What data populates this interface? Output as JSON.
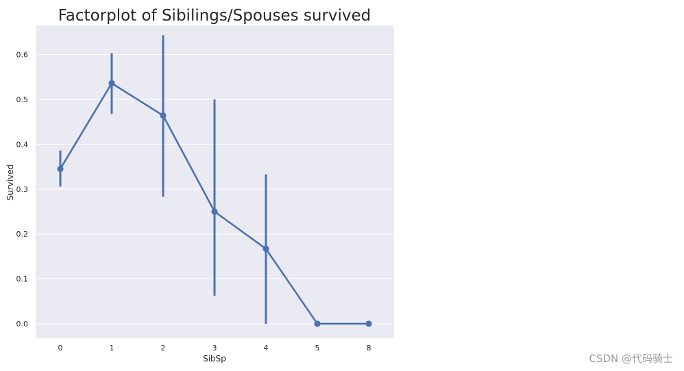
{
  "chart_data": {
    "type": "line",
    "title": "Factorplot of Sibilings/Spouses survived",
    "xlabel": "SibSp",
    "ylabel": "Survived",
    "categories": [
      "0",
      "1",
      "2",
      "3",
      "4",
      "5",
      "8"
    ],
    "values": [
      0.345,
      0.536,
      0.464,
      0.25,
      0.167,
      0.0,
      0.0
    ],
    "error_low": [
      0.306,
      0.468,
      0.283,
      0.062,
      0.0,
      0.0,
      0.0
    ],
    "error_high": [
      0.386,
      0.603,
      0.643,
      0.5,
      0.333,
      0.0,
      0.0
    ],
    "ylim": [
      -0.032,
      0.665
    ],
    "yticks": [
      "0.0",
      "0.1",
      "0.2",
      "0.3",
      "0.4",
      "0.5",
      "0.6"
    ],
    "grid": true,
    "colors": {
      "series": "#4c72b0",
      "background": "#eaeaf2",
      "grid": "#ffffff"
    }
  },
  "watermark": "CSDN @代码骑士"
}
